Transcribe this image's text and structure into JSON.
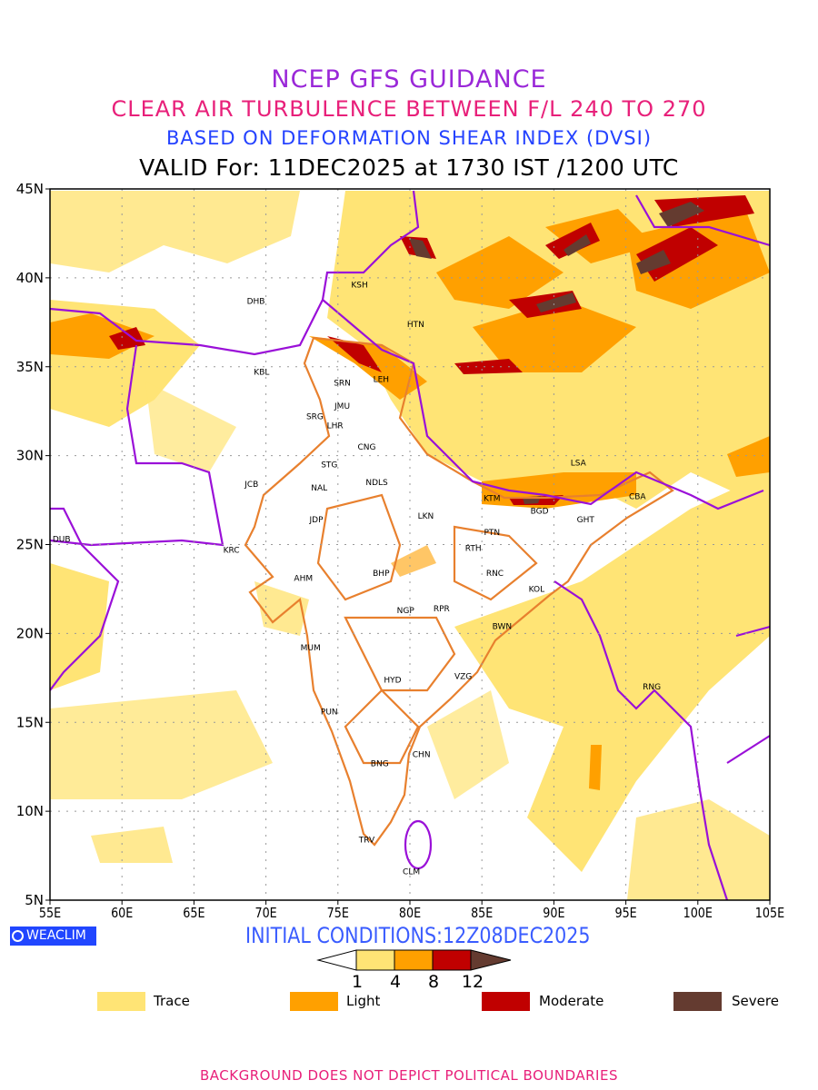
{
  "title": {
    "line1": "NCEP GFS GUIDANCE",
    "line2": "CLEAR AIR TURBULENCE BETWEEN F/L 240 TO 270",
    "line3": "BASED ON DEFORMATION SHEAR INDEX (DVSI)",
    "line4": "VALID For: 11DEC2025 at 1730 IST /1200 UTC"
  },
  "map": {
    "lon_range": [
      55,
      105
    ],
    "lat_range": [
      5,
      45
    ],
    "lon_ticks": [
      "55E",
      "60E",
      "65E",
      "70E",
      "75E",
      "80E",
      "85E",
      "90E",
      "95E",
      "100E",
      "105E"
    ],
    "lat_ticks": [
      "5N",
      "10N",
      "15N",
      "20N",
      "25N",
      "30N",
      "35N",
      "40N",
      "45N"
    ],
    "stations": [
      {
        "code": "DHB",
        "lon": 69.3,
        "lat": 38.7
      },
      {
        "code": "KSH",
        "lon": 76.5,
        "lat": 39.6
      },
      {
        "code": "HTN",
        "lon": 80.4,
        "lat": 37.4
      },
      {
        "code": "KBL",
        "lon": 69.7,
        "lat": 34.7
      },
      {
        "code": "SRN",
        "lon": 75.3,
        "lat": 34.1
      },
      {
        "code": "LEH",
        "lon": 78.0,
        "lat": 34.3
      },
      {
        "code": "JMU",
        "lon": 75.3,
        "lat": 32.8
      },
      {
        "code": "SRG",
        "lon": 73.4,
        "lat": 32.2
      },
      {
        "code": "LHR",
        "lon": 74.8,
        "lat": 31.7
      },
      {
        "code": "CNG",
        "lon": 77.0,
        "lat": 30.5
      },
      {
        "code": "STG",
        "lon": 74.4,
        "lat": 29.5
      },
      {
        "code": "JCB",
        "lon": 69.0,
        "lat": 28.4
      },
      {
        "code": "NAL",
        "lon": 73.7,
        "lat": 28.2
      },
      {
        "code": "NDLS",
        "lon": 77.7,
        "lat": 28.5
      },
      {
        "code": "JDP",
        "lon": 73.5,
        "lat": 26.4
      },
      {
        "code": "LKN",
        "lon": 81.1,
        "lat": 26.6
      },
      {
        "code": "KTM",
        "lon": 85.7,
        "lat": 27.6
      },
      {
        "code": "BGD",
        "lon": 89.0,
        "lat": 26.9
      },
      {
        "code": "CBA",
        "lon": 95.8,
        "lat": 27.7
      },
      {
        "code": "LSA",
        "lon": 91.7,
        "lat": 29.6
      },
      {
        "code": "GHT",
        "lon": 92.2,
        "lat": 26.4
      },
      {
        "code": "PTN",
        "lon": 85.7,
        "lat": 25.7
      },
      {
        "code": "RTH",
        "lon": 84.4,
        "lat": 24.8
      },
      {
        "code": "DUB",
        "lon": 55.8,
        "lat": 25.3
      },
      {
        "code": "KRC",
        "lon": 67.6,
        "lat": 24.7
      },
      {
        "code": "AHM",
        "lon": 72.6,
        "lat": 23.1
      },
      {
        "code": "BHP",
        "lon": 78.0,
        "lat": 23.4
      },
      {
        "code": "RNC",
        "lon": 85.9,
        "lat": 23.4
      },
      {
        "code": "KOL",
        "lon": 88.8,
        "lat": 22.5
      },
      {
        "code": "NGP",
        "lon": 79.7,
        "lat": 21.3
      },
      {
        "code": "RPR",
        "lon": 82.2,
        "lat": 21.4
      },
      {
        "code": "BWN",
        "lon": 86.4,
        "lat": 20.4
      },
      {
        "code": "MUM",
        "lon": 73.1,
        "lat": 19.2
      },
      {
        "code": "HYD",
        "lon": 78.8,
        "lat": 17.4
      },
      {
        "code": "VZG",
        "lon": 83.7,
        "lat": 17.6
      },
      {
        "code": "RNG",
        "lon": 96.8,
        "lat": 17.0
      },
      {
        "code": "PUN",
        "lon": 74.4,
        "lat": 15.6
      },
      {
        "code": "CHN",
        "lon": 80.8,
        "lat": 13.2
      },
      {
        "code": "BNG",
        "lon": 77.9,
        "lat": 12.7
      },
      {
        "code": "TRV",
        "lon": 77.0,
        "lat": 8.4
      },
      {
        "code": "CLM",
        "lon": 80.1,
        "lat": 6.6
      }
    ]
  },
  "footer": {
    "logo": "WEACLIM",
    "initial_conditions": "INITIAL CONDITIONS:12Z08DEC2025",
    "colorbar_ticks": [
      "1",
      "4",
      "8",
      "12"
    ],
    "legend": [
      {
        "label": "Trace",
        "color": "#ffe475"
      },
      {
        "label": "Light",
        "color": "#ffa000"
      },
      {
        "label": "Moderate",
        "color": "#c00000"
      },
      {
        "label": "Severe",
        "color": "#643b30"
      }
    ],
    "disclaimer": "BACKGROUND DOES NOT DEPICT POLITICAL BOUNDARIES"
  }
}
